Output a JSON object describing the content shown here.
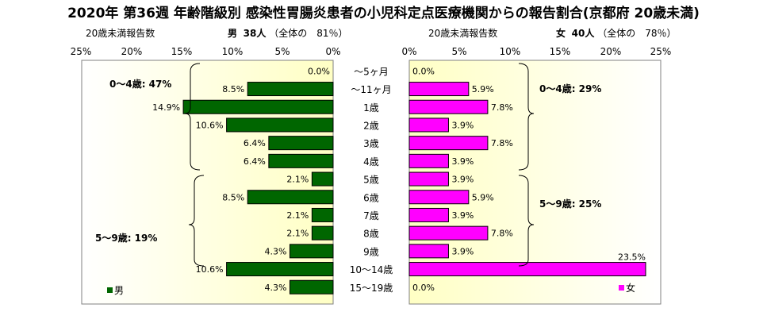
{
  "title": "2020年 第36週 年齢階級別 感染性胃腸炎患者の小児科定点医療機関からの報告割合(京都府 20歳未満)",
  "male_header": {
    "subtitle": "20歳未満報告数",
    "label": "男",
    "count": "38人",
    "share_text": "（全体の　81％）"
  },
  "female_header": {
    "subtitle": "20歳未満報告数",
    "label": "女",
    "count": "40人",
    "share_text": "（全体の　78％）"
  },
  "axis_ticks": [
    "0%",
    "5%",
    "10%",
    "15%",
    "20%",
    "25%"
  ],
  "chart_data": {
    "type": "bar",
    "categories": [
      "～5ヶ月",
      "～11ヶ月",
      "1歳",
      "2歳",
      "3歳",
      "4歳",
      "5歳",
      "6歳",
      "7歳",
      "8歳",
      "9歳",
      "10～14歳",
      "15～19歳"
    ],
    "series": [
      {
        "name": "男",
        "color": "#006600",
        "values": [
          0.0,
          8.5,
          14.9,
          10.6,
          6.4,
          6.4,
          2.1,
          8.5,
          2.1,
          2.1,
          4.3,
          10.6,
          4.3
        ],
        "labels": [
          "0.0%",
          "8.5%",
          "14.9%",
          "10.6%",
          "6.4%",
          "6.4%",
          "2.1%",
          "8.5%",
          "2.1%",
          "2.1%",
          "4.3%",
          "10.6%",
          "4.3%"
        ]
      },
      {
        "name": "女",
        "color": "#ff00ff",
        "values": [
          0.0,
          5.9,
          7.8,
          3.9,
          7.8,
          3.9,
          3.9,
          5.9,
          3.9,
          7.8,
          3.9,
          23.5,
          0.0
        ],
        "labels": [
          "0.0%",
          "5.9%",
          "7.8%",
          "3.9%",
          "7.8%",
          "3.9%",
          "3.9%",
          "5.9%",
          "3.9%",
          "7.8%",
          "3.9%",
          "23.5%",
          "0.0%"
        ]
      }
    ],
    "xlim": [
      0,
      25
    ],
    "annotations": {
      "male_0_4": "0～4歳: 47%",
      "male_5_9": "5～9歳: 19%",
      "female_0_4": "0～4歳: 29%",
      "female_5_9": "5～9歳: 25%"
    },
    "legend": {
      "male": "男",
      "female": "女",
      "placement": "bottom-left / bottom-right"
    }
  }
}
